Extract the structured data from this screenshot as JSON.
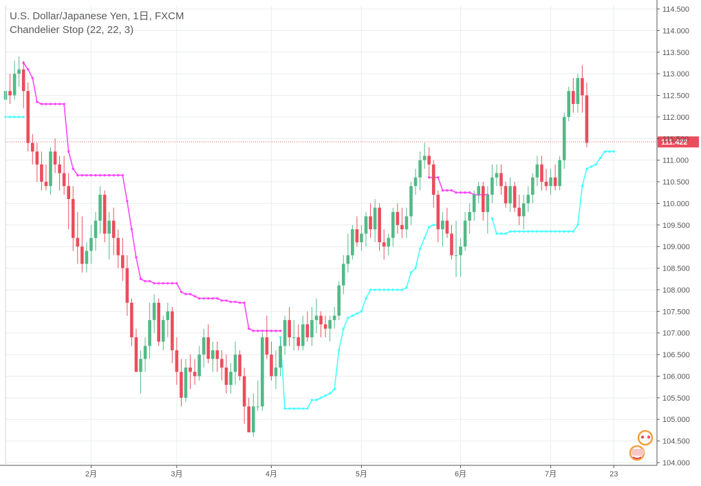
{
  "legend": {
    "symbol": "U.S. Dollar/Japanese Yen, 1日, FXCM",
    "indicator": "Chandelier Stop (22, 22, 3)"
  },
  "colors": {
    "up": "#53b987",
    "down": "#eb4d5c",
    "stop_short": "#ff44ff",
    "stop_long": "#44ffff",
    "grid": "#e9ecef",
    "axis": "#555555",
    "price_line": "#eb4d5c"
  },
  "chart_data": {
    "type": "candlestick",
    "title": "",
    "ylim": [
      104.0,
      114.5
    ],
    "y_ticks": [
      "104.000",
      "104.500",
      "105.000",
      "105.500",
      "106.000",
      "106.500",
      "107.000",
      "107.500",
      "108.000",
      "108.500",
      "109.000",
      "109.500",
      "110.000",
      "110.500",
      "111.000",
      "111.500",
      "112.000",
      "112.500",
      "113.000",
      "113.500",
      "114.000",
      "114.500"
    ],
    "x_ticks": [
      {
        "label": "2月",
        "index": 19
      },
      {
        "label": "3月",
        "index": 38
      },
      {
        "label": "4月",
        "index": 59
      },
      {
        "label": "5月",
        "index": 79
      },
      {
        "label": "6月",
        "index": 101
      },
      {
        "label": "7月",
        "index": 121
      },
      {
        "label": "23",
        "index": 135
      }
    ],
    "last_price": "111.422",
    "candles": [
      [
        112.4,
        112.8,
        112.1,
        112.6
      ],
      [
        112.6,
        113.0,
        112.3,
        112.5
      ],
      [
        112.5,
        113.3,
        112.4,
        113.0
      ],
      [
        113.0,
        113.4,
        112.7,
        113.1
      ],
      [
        113.1,
        113.3,
        112.2,
        112.6
      ],
      [
        112.6,
        112.8,
        111.2,
        111.4
      ],
      [
        111.4,
        111.6,
        110.9,
        111.2
      ],
      [
        111.2,
        111.4,
        110.5,
        110.9
      ],
      [
        110.9,
        111.2,
        110.3,
        110.5
      ],
      [
        110.5,
        110.9,
        110.3,
        110.4
      ],
      [
        110.4,
        111.3,
        110.2,
        111.2
      ],
      [
        111.2,
        111.5,
        110.7,
        110.9
      ],
      [
        110.9,
        111.1,
        110.3,
        110.7
      ],
      [
        110.7,
        111.1,
        110.2,
        110.4
      ],
      [
        110.4,
        110.7,
        109.4,
        110.1
      ],
      [
        110.1,
        110.4,
        108.9,
        109.2
      ],
      [
        109.2,
        109.8,
        108.6,
        109.0
      ],
      [
        109.0,
        109.7,
        108.4,
        108.6
      ],
      [
        108.6,
        109.1,
        108.4,
        108.9
      ],
      [
        108.9,
        109.5,
        108.6,
        109.2
      ],
      [
        109.2,
        109.8,
        108.9,
        109.6
      ],
      [
        109.6,
        110.4,
        109.3,
        110.2
      ],
      [
        110.2,
        110.3,
        109.1,
        109.3
      ],
      [
        109.3,
        109.8,
        108.7,
        109.6
      ],
      [
        109.6,
        109.9,
        108.8,
        109.2
      ],
      [
        109.2,
        109.4,
        108.5,
        108.8
      ],
      [
        108.8,
        109.2,
        108.2,
        108.5
      ],
      [
        108.5,
        108.8,
        107.4,
        107.7
      ],
      [
        107.7,
        107.8,
        106.7,
        106.9
      ],
      [
        106.9,
        107.1,
        106.1,
        106.1
      ],
      [
        106.1,
        106.6,
        105.6,
        106.4
      ],
      [
        106.4,
        106.9,
        106.1,
        106.7
      ],
      [
        106.7,
        107.7,
        106.4,
        107.3
      ],
      [
        107.3,
        107.9,
        107.0,
        107.7
      ],
      [
        107.7,
        107.8,
        106.7,
        106.8
      ],
      [
        106.8,
        107.4,
        106.6,
        107.3
      ],
      [
        107.3,
        107.7,
        106.9,
        107.5
      ],
      [
        107.5,
        107.6,
        106.3,
        106.6
      ],
      [
        106.6,
        106.9,
        105.8,
        106.1
      ],
      [
        106.1,
        106.4,
        105.3,
        105.5
      ],
      [
        105.5,
        106.4,
        105.4,
        106.2
      ],
      [
        106.2,
        106.5,
        105.7,
        106.1
      ],
      [
        106.1,
        106.4,
        105.8,
        106.0
      ],
      [
        106.0,
        106.7,
        105.9,
        106.5
      ],
      [
        106.5,
        107.1,
        106.2,
        106.9
      ],
      [
        106.9,
        107.2,
        106.3,
        106.4
      ],
      [
        106.4,
        106.8,
        106.1,
        106.6
      ],
      [
        106.6,
        106.8,
        106.1,
        106.4
      ],
      [
        106.4,
        106.6,
        105.9,
        106.2
      ],
      [
        106.2,
        106.5,
        105.6,
        105.8
      ],
      [
        105.8,
        106.3,
        105.6,
        106.1
      ],
      [
        106.1,
        106.8,
        105.8,
        106.5
      ],
      [
        106.5,
        106.6,
        105.9,
        106.0
      ],
      [
        106.0,
        106.2,
        104.9,
        105.3
      ],
      [
        105.3,
        105.5,
        104.7,
        104.7
      ],
      [
        104.7,
        105.6,
        104.6,
        105.3
      ],
      [
        105.3,
        105.9,
        105.2,
        105.3
      ],
      [
        105.3,
        107.0,
        105.2,
        106.9
      ],
      [
        106.9,
        107.4,
        106.4,
        106.5
      ],
      [
        106.5,
        106.8,
        105.9,
        106.0
      ],
      [
        106.0,
        106.6,
        105.7,
        106.2
      ],
      [
        106.2,
        106.9,
        106.0,
        106.7
      ],
      [
        106.7,
        107.4,
        106.5,
        107.3
      ],
      [
        107.3,
        107.6,
        106.7,
        106.9
      ],
      [
        106.9,
        107.3,
        106.6,
        106.9
      ],
      [
        106.9,
        107.2,
        106.6,
        106.7
      ],
      [
        106.7,
        107.4,
        106.6,
        107.2
      ],
      [
        107.2,
        107.5,
        106.8,
        106.9
      ],
      [
        106.9,
        107.6,
        106.7,
        107.3
      ],
      [
        107.3,
        107.8,
        107.0,
        107.4
      ],
      [
        107.4,
        107.5,
        106.9,
        107.2
      ],
      [
        107.2,
        107.4,
        106.9,
        107.1
      ],
      [
        107.1,
        107.4,
        106.8,
        107.3
      ],
      [
        107.3,
        107.6,
        107.1,
        107.4
      ],
      [
        107.4,
        108.2,
        107.3,
        108.1
      ],
      [
        108.1,
        108.8,
        107.9,
        108.6
      ],
      [
        108.6,
        109.3,
        108.4,
        108.8
      ],
      [
        108.8,
        109.5,
        108.7,
        109.4
      ],
      [
        109.4,
        109.7,
        109.0,
        109.1
      ],
      [
        109.1,
        109.5,
        108.9,
        109.3
      ],
      [
        109.3,
        109.8,
        109.0,
        109.7
      ],
      [
        109.7,
        110.0,
        109.2,
        109.4
      ],
      [
        109.4,
        110.1,
        109.1,
        109.9
      ],
      [
        109.9,
        110.0,
        108.9,
        109.1
      ],
      [
        109.1,
        109.4,
        108.7,
        109.0
      ],
      [
        109.0,
        109.3,
        108.8,
        109.2
      ],
      [
        109.2,
        109.9,
        109.0,
        109.8
      ],
      [
        109.8,
        110.0,
        109.3,
        109.5
      ],
      [
        109.5,
        109.9,
        109.2,
        109.4
      ],
      [
        109.4,
        109.9,
        109.2,
        109.7
      ],
      [
        109.7,
        110.5,
        109.5,
        110.4
      ],
      [
        110.4,
        110.8,
        110.2,
        110.6
      ],
      [
        110.6,
        111.2,
        110.3,
        111.0
      ],
      [
        111.0,
        111.4,
        110.8,
        111.1
      ],
      [
        111.1,
        111.3,
        110.6,
        110.9
      ],
      [
        110.9,
        111.0,
        109.9,
        110.2
      ],
      [
        110.2,
        110.3,
        109.1,
        109.4
      ],
      [
        109.4,
        109.8,
        109.0,
        109.6
      ],
      [
        109.6,
        109.9,
        109.2,
        109.3
      ],
      [
        109.3,
        109.5,
        108.7,
        108.8
      ],
      [
        108.8,
        109.6,
        108.3,
        108.8
      ],
      [
        108.8,
        109.2,
        108.3,
        109.0
      ],
      [
        109.0,
        109.8,
        108.9,
        109.6
      ],
      [
        109.6,
        110.0,
        109.3,
        109.8
      ],
      [
        109.8,
        110.3,
        109.6,
        110.2
      ],
      [
        110.2,
        110.5,
        110.0,
        110.4
      ],
      [
        110.4,
        110.5,
        109.6,
        109.8
      ],
      [
        109.8,
        110.4,
        109.3,
        110.2
      ],
      [
        110.2,
        110.9,
        110.0,
        110.6
      ],
      [
        110.6,
        110.9,
        110.4,
        110.7
      ],
      [
        110.7,
        110.9,
        110.2,
        110.4
      ],
      [
        110.4,
        110.5,
        109.9,
        110.0
      ],
      [
        110.0,
        110.6,
        109.8,
        110.4
      ],
      [
        110.4,
        110.5,
        109.8,
        109.9
      ],
      [
        109.9,
        110.2,
        109.5,
        109.7
      ],
      [
        109.7,
        110.2,
        109.4,
        110.0
      ],
      [
        110.0,
        110.4,
        109.8,
        110.2
      ],
      [
        110.2,
        110.7,
        110.0,
        110.6
      ],
      [
        110.6,
        111.1,
        110.4,
        110.9
      ],
      [
        110.9,
        111.1,
        110.3,
        110.5
      ],
      [
        110.5,
        110.8,
        110.3,
        110.4
      ],
      [
        110.4,
        110.8,
        110.2,
        110.6
      ],
      [
        110.6,
        110.9,
        110.3,
        110.4
      ],
      [
        110.4,
        111.1,
        110.3,
        111.0
      ],
      [
        111.0,
        112.1,
        110.8,
        112.0
      ],
      [
        112.0,
        112.7,
        111.9,
        112.6
      ],
      [
        112.6,
        112.9,
        112.1,
        112.3
      ],
      [
        112.3,
        113.0,
        112.1,
        112.9
      ],
      [
        112.9,
        113.2,
        112.1,
        112.5
      ],
      [
        112.5,
        112.8,
        111.3,
        111.4
      ]
    ],
    "stop_short": [
      [
        4,
        113.25
      ],
      [
        5,
        113.1
      ],
      [
        6,
        112.9
      ],
      [
        7,
        112.35
      ],
      [
        8,
        112.3
      ],
      [
        9,
        112.3
      ],
      [
        10,
        112.3
      ],
      [
        11,
        112.3
      ],
      [
        12,
        112.3
      ],
      [
        13,
        112.3
      ],
      [
        14,
        111.2
      ],
      [
        15,
        110.8
      ],
      [
        16,
        110.65
      ],
      [
        17,
        110.65
      ],
      [
        18,
        110.65
      ],
      [
        19,
        110.65
      ],
      [
        20,
        110.65
      ],
      [
        21,
        110.65
      ],
      [
        22,
        110.65
      ],
      [
        23,
        110.65
      ],
      [
        24,
        110.65
      ],
      [
        25,
        110.65
      ],
      [
        26,
        110.65
      ],
      [
        27,
        110.05
      ],
      [
        28,
        109.4
      ],
      [
        29,
        108.75
      ],
      [
        30,
        108.25
      ],
      [
        31,
        108.2
      ],
      [
        32,
        108.2
      ],
      [
        33,
        108.15
      ],
      [
        34,
        108.15
      ],
      [
        35,
        108.15
      ],
      [
        36,
        108.15
      ],
      [
        37,
        108.15
      ],
      [
        38,
        108.15
      ],
      [
        39,
        107.95
      ],
      [
        40,
        107.9
      ],
      [
        41,
        107.9
      ],
      [
        42,
        107.85
      ],
      [
        43,
        107.8
      ],
      [
        44,
        107.8
      ],
      [
        45,
        107.8
      ],
      [
        46,
        107.8
      ],
      [
        47,
        107.8
      ],
      [
        48,
        107.75
      ],
      [
        49,
        107.75
      ],
      [
        50,
        107.72
      ],
      [
        51,
        107.72
      ],
      [
        52,
        107.7
      ],
      [
        53,
        107.7
      ],
      [
        54,
        107.1
      ],
      [
        55,
        107.05
      ],
      [
        56,
        107.05
      ],
      [
        57,
        107.05
      ],
      [
        58,
        107.05
      ],
      [
        59,
        107.05
      ],
      [
        60,
        107.05
      ],
      [
        61,
        107.05
      ]
    ],
    "stop_short_2": [
      [
        94,
        110.6
      ],
      [
        95,
        110.6
      ],
      [
        96,
        110.6
      ],
      [
        97,
        110.3
      ],
      [
        98,
        110.3
      ],
      [
        99,
        110.3
      ],
      [
        100,
        110.25
      ],
      [
        101,
        110.25
      ],
      [
        102,
        110.25
      ],
      [
        103,
        110.25
      ],
      [
        104,
        110.2
      ],
      [
        105,
        110.2
      ],
      [
        106,
        110.2
      ],
      [
        107,
        110.2
      ]
    ],
    "stop_long": [
      [
        0,
        112.0
      ],
      [
        1,
        112.0
      ],
      [
        2,
        112.0
      ],
      [
        3,
        112.0
      ],
      [
        4,
        112.0
      ]
    ],
    "stop_long_2": [
      [
        61,
        106.9
      ],
      [
        62,
        105.25
      ],
      [
        63,
        105.25
      ],
      [
        64,
        105.25
      ],
      [
        65,
        105.25
      ],
      [
        66,
        105.25
      ],
      [
        67,
        105.25
      ],
      [
        68,
        105.45
      ],
      [
        69,
        105.45
      ],
      [
        70,
        105.5
      ],
      [
        71,
        105.55
      ],
      [
        72,
        105.6
      ],
      [
        73,
        105.7
      ],
      [
        74,
        106.6
      ],
      [
        75,
        107.1
      ],
      [
        76,
        107.35
      ],
      [
        77,
        107.4
      ],
      [
        78,
        107.45
      ],
      [
        79,
        107.5
      ],
      [
        80,
        107.8
      ],
      [
        81,
        108.0
      ],
      [
        82,
        108.0
      ],
      [
        83,
        108.0
      ],
      [
        84,
        108.0
      ],
      [
        85,
        108.0
      ],
      [
        86,
        108.0
      ],
      [
        87,
        108.0
      ],
      [
        88,
        108.0
      ],
      [
        89,
        108.05
      ],
      [
        90,
        108.4
      ],
      [
        91,
        108.5
      ],
      [
        92,
        108.95
      ],
      [
        93,
        109.2
      ],
      [
        94,
        109.45
      ],
      [
        95,
        109.5
      ],
      [
        96,
        109.5
      ]
    ],
    "stop_long_3": [
      [
        108,
        109.65
      ],
      [
        109,
        109.3
      ],
      [
        110,
        109.3
      ],
      [
        111,
        109.3
      ],
      [
        112,
        109.35
      ],
      [
        113,
        109.35
      ],
      [
        114,
        109.35
      ],
      [
        115,
        109.35
      ],
      [
        116,
        109.35
      ],
      [
        117,
        109.35
      ],
      [
        118,
        109.35
      ],
      [
        119,
        109.35
      ],
      [
        120,
        109.35
      ],
      [
        121,
        109.35
      ],
      [
        122,
        109.35
      ],
      [
        123,
        109.35
      ],
      [
        124,
        109.35
      ],
      [
        125,
        109.35
      ],
      [
        126,
        109.35
      ],
      [
        127,
        109.5
      ],
      [
        128,
        110.4
      ],
      [
        129,
        110.8
      ],
      [
        130,
        110.85
      ],
      [
        131,
        110.9
      ],
      [
        132,
        111.05
      ],
      [
        133,
        111.2
      ],
      [
        134,
        111.2
      ],
      [
        135,
        111.2
      ]
    ]
  }
}
